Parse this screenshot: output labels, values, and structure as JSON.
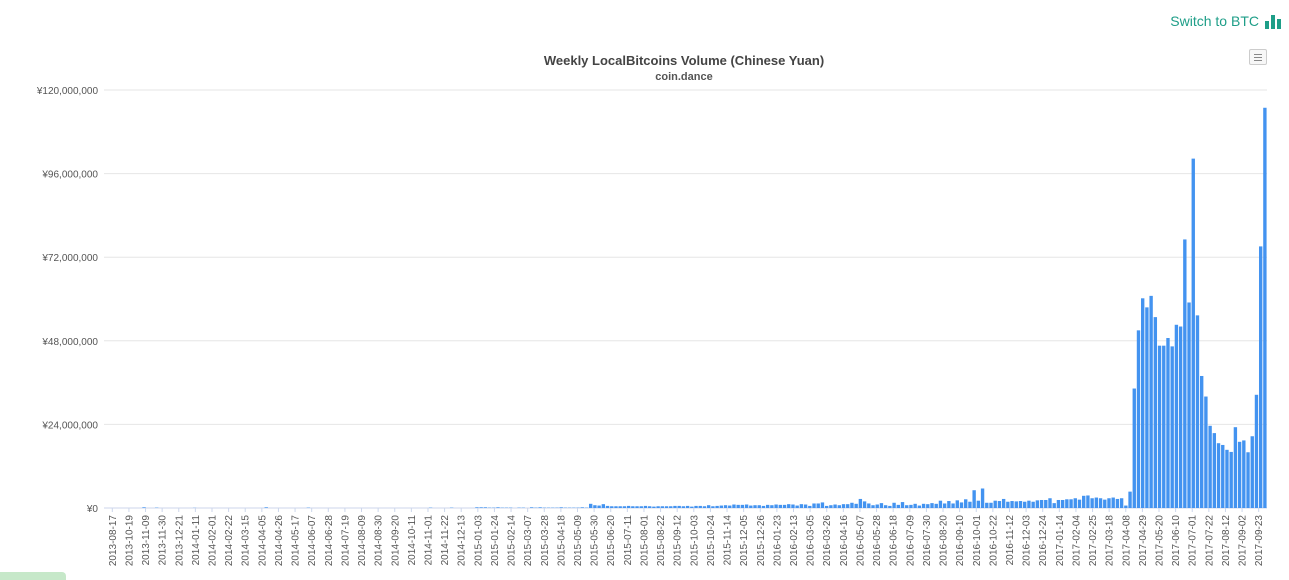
{
  "header": {
    "switch_label": "Switch to BTC",
    "switch_icon": "bar-chart-icon",
    "accent_color": "#1e9e88"
  },
  "menu_icon": "hamburger-menu-icon",
  "chart_data": {
    "type": "bar",
    "title": "Weekly LocalBitcoins Volume (Chinese Yuan)",
    "subtitle": "coin.dance",
    "xlabel": "",
    "ylabel": "",
    "bar_color": "#4393f0",
    "grid": true,
    "ylim": [
      0,
      120000000
    ],
    "y_ticks": [
      {
        "value": 0,
        "label": "¥0"
      },
      {
        "value": 24000000,
        "label": "¥24,000,000"
      },
      {
        "value": 48000000,
        "label": "¥48,000,000"
      },
      {
        "value": 72000000,
        "label": "¥72,000,000"
      },
      {
        "value": 96000000,
        "label": "¥96,000,000"
      },
      {
        "value": 120000000,
        "label": "¥120,000,000"
      }
    ],
    "x_tick_labels": [
      "2013-08-17",
      "2013-10-19",
      "2013-11-09",
      "2013-11-30",
      "2013-12-21",
      "2014-01-11",
      "2014-02-01",
      "2014-02-22",
      "2014-03-15",
      "2014-04-05",
      "2014-04-26",
      "2014-05-17",
      "2014-06-07",
      "2014-06-28",
      "2014-07-19",
      "2014-08-09",
      "2014-08-30",
      "2014-09-20",
      "2014-10-11",
      "2014-11-01",
      "2014-11-22",
      "2014-12-13",
      "2015-01-03",
      "2015-01-24",
      "2015-02-14",
      "2015-03-07",
      "2015-03-28",
      "2015-04-18",
      "2015-05-09",
      "2015-05-30",
      "2015-06-20",
      "2015-07-11",
      "2015-08-01",
      "2015-08-22",
      "2015-09-12",
      "2015-10-03",
      "2015-10-24",
      "2015-11-14",
      "2015-12-05",
      "2015-12-26",
      "2016-01-23",
      "2016-02-13",
      "2016-03-05",
      "2016-03-26",
      "2016-04-16",
      "2016-05-07",
      "2016-05-28",
      "2016-06-18",
      "2016-07-09",
      "2016-07-30",
      "2016-08-20",
      "2016-09-10",
      "2016-10-01",
      "2016-10-22",
      "2016-11-12",
      "2016-12-03",
      "2016-12-24",
      "2017-01-14",
      "2017-02-04",
      "2017-02-25",
      "2017-03-18",
      "2017-04-08",
      "2017-04-29",
      "2017-05-20",
      "2017-06-10",
      "2017-07-01",
      "2017-07-22",
      "2017-08-12",
      "2017-09-02",
      "2017-09-23"
    ],
    "series": [
      {
        "values": [
          0,
          0,
          0,
          0,
          0,
          0,
          0,
          0,
          0,
          200000,
          0,
          0,
          100000,
          0,
          0,
          0,
          0,
          0,
          0,
          0,
          0,
          50000,
          0,
          0,
          0,
          0,
          0,
          0,
          0,
          0,
          0,
          0,
          0,
          0,
          0,
          0,
          0,
          0,
          200000,
          0,
          0,
          0,
          0,
          0,
          0,
          0,
          0,
          0,
          100000,
          0,
          0,
          0,
          0,
          0,
          0,
          0,
          0,
          0,
          0,
          0,
          0,
          0,
          0,
          0,
          0,
          0,
          0,
          0,
          0,
          0,
          0,
          0,
          0,
          0,
          0,
          0,
          0,
          100000,
          0,
          0,
          0,
          0,
          100000,
          0,
          0,
          0,
          0,
          0,
          200000,
          200000,
          200000,
          100000,
          100000,
          200000,
          100000,
          100000,
          100000,
          0,
          100000,
          100000,
          0,
          200000,
          100000,
          200000,
          100000,
          100000,
          100000,
          100000,
          200000,
          100000,
          100000,
          100000,
          100000,
          200000,
          100000,
          1200000,
          800000,
          700000,
          1100000,
          600000,
          500000,
          500000,
          500000,
          500000,
          600000,
          500000,
          500000,
          500000,
          600000,
          500000,
          400000,
          500000,
          500000,
          500000,
          500000,
          600000,
          600000,
          500000,
          600000,
          400000,
          600000,
          600000,
          500000,
          800000,
          500000,
          600000,
          700000,
          800000,
          700000,
          1000000,
          900000,
          900000,
          1000000,
          700000,
          800000,
          800000,
          600000,
          900000,
          800000,
          1000000,
          900000,
          900000,
          1100000,
          1000000,
          700000,
          1100000,
          1000000,
          600000,
          1300000,
          1300000,
          1600000,
          600000,
          800000,
          1000000,
          800000,
          1100000,
          1100000,
          1500000,
          1200000,
          2600000,
          1900000,
          1300000,
          800000,
          1000000,
          1400000,
          800000,
          600000,
          1500000,
          900000,
          1700000,
          800000,
          900000,
          1200000,
          700000,
          1200000,
          1100000,
          1400000,
          1200000,
          2100000,
          1300000,
          2000000,
          1300000,
          2200000,
          1600000,
          2500000,
          1800000,
          5100000,
          2100000,
          5600000,
          1500000,
          1500000,
          2100000,
          2000000,
          2600000,
          1800000,
          2000000,
          1900000,
          2000000,
          1800000,
          2100000,
          1800000,
          2200000,
          2300000,
          2300000,
          2800000,
          1400000,
          2300000,
          2300000,
          2500000,
          2500000,
          2800000,
          2400000,
          3500000,
          3600000,
          2800000,
          3000000,
          2800000,
          2400000,
          2800000,
          3000000,
          2600000,
          2800000,
          700000,
          4700000,
          34300000,
          51000000,
          60200000,
          57600000,
          60900000,
          54800000,
          46600000,
          46600000,
          48800000,
          46400000,
          52600000,
          52100000,
          77100000,
          59000000,
          100300000,
          55300000,
          37900000,
          32000000,
          23600000,
          21500000,
          18600000,
          18100000,
          16700000,
          16100000,
          23200000,
          19000000,
          19400000,
          16000000,
          20600000,
          32500000,
          75100000,
          114900000
        ]
      }
    ]
  }
}
